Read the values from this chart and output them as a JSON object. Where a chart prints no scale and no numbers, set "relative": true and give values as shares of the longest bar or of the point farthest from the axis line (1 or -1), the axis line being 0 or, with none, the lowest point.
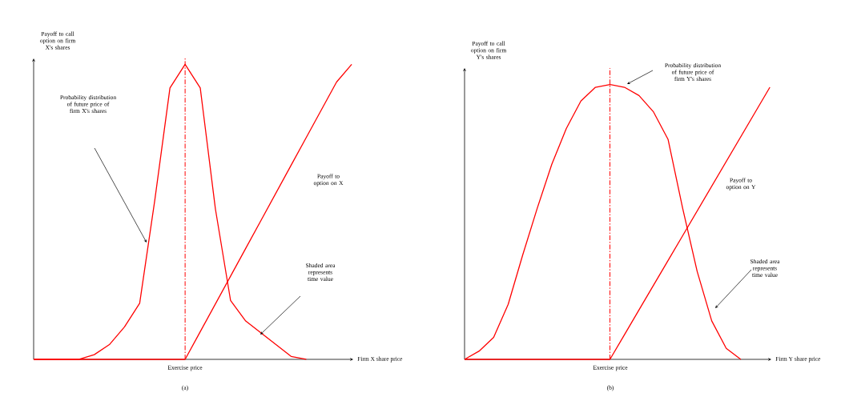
{
  "chart_data": [
    {
      "type": "line",
      "relative": true,
      "xlabel": "Firm X share price",
      "ylabel": "Payoff to call option on firm X's shares",
      "categories": [
        null,
        null,
        null,
        null,
        null,
        null,
        null,
        null,
        null,
        null,
        null,
        null,
        null,
        null,
        null,
        null,
        null,
        null,
        null,
        null,
        null,
        null
      ],
      "series": [
        {
          "color": "#ff0000",
          "values": [
            0,
            0,
            0,
            0,
            0.016,
            0.05,
            0.11,
            0.19,
            0.54,
            0.92,
            1.0,
            0.92,
            0.51,
            0.2,
            0.13,
            0.09,
            0.05,
            0.01,
            0,
            null,
            null,
            null
          ]
        },
        {
          "color": "#ff0000",
          "values": [
            0,
            0,
            0,
            0,
            0,
            0,
            0,
            0,
            0,
            0,
            0,
            0.094,
            0.188,
            0.282,
            0.376,
            0.47,
            0.564,
            0.658,
            0.752,
            0.846,
            0.94,
            1.0
          ]
        }
      ],
      "annotations": [
        "Probability distribution of future price of firm X's shares",
        "Payoff to option on X",
        "Shaded area represents time value",
        "(a)",
        "Exercise price"
      ]
    },
    {
      "type": "line",
      "relative": true,
      "xlabel": "Firm Y share price",
      "ylabel": "Payoff to call option on firm Y's shares",
      "categories": [
        null,
        null,
        null,
        null,
        null,
        null,
        null,
        null,
        null,
        null,
        null,
        null,
        null,
        null,
        null,
        null,
        null,
        null,
        null,
        null,
        null,
        null
      ],
      "series": [
        {
          "color": "#ff0000",
          "values": [
            0,
            0.03,
            0.08,
            0.2,
            0.38,
            0.55,
            0.71,
            0.84,
            0.94,
            0.99,
            1.0,
            0.99,
            0.96,
            0.9,
            0.8,
            0.55,
            0.32,
            0.14,
            0.04,
            0,
            null,
            null
          ]
        },
        {
          "color": "#ff0000",
          "values": [
            0,
            0,
            0,
            0,
            0,
            0,
            0,
            0,
            0,
            0,
            0,
            0.09,
            0.18,
            0.27,
            0.36,
            0.45,
            0.54,
            0.63,
            0.72,
            0.81,
            0.9,
            0.99
          ]
        }
      ],
      "annotations": [
        "Probability distribution of future price of firm Y's shares",
        "Payoff to option on Y",
        "Shaded area represents time value",
        "(b)",
        "Exercise price"
      ]
    }
  ]
}
